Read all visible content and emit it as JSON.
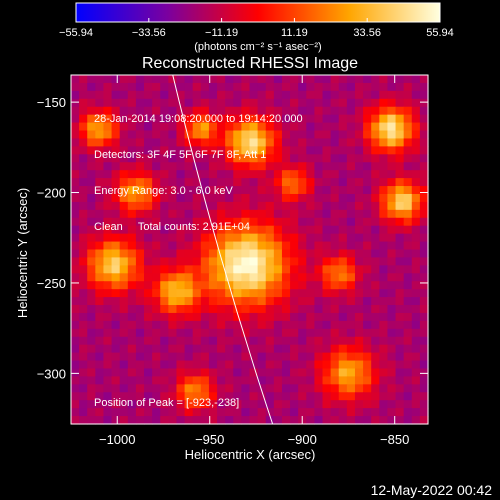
{
  "chart_data": {
    "type": "heatmap",
    "title": "Reconstructed RHESSI Image",
    "xlabel": "Heliocentric X (arcsec)",
    "ylabel": "Heliocentric Y (arcsec)",
    "xlim": [
      -1025,
      -832
    ],
    "ylim": [
      -328,
      -135
    ],
    "x_ticks": [
      -1000,
      -950,
      -900,
      -850
    ],
    "x_tick_labels": [
      "−1000",
      "−950",
      "−900",
      "−850"
    ],
    "y_ticks": [
      -150,
      -200,
      -250,
      -300
    ],
    "y_tick_labels": [
      "−150",
      "−200",
      "−250",
      "−300"
    ],
    "colorbar": {
      "min": -55.94,
      "max": 55.94,
      "ticks": [
        -55.94,
        -33.56,
        -11.19,
        11.19,
        33.56,
        55.94
      ],
      "tick_labels": [
        "−55.94",
        "−33.56",
        "−11.19",
        "11.19",
        "33.56",
        "55.94"
      ],
      "unit_label": "(photons cm⁻² s⁻¹ asec⁻²)",
      "colors": [
        "#0000ff",
        "#7a00a0",
        "#ff0000",
        "#ffa500",
        "#ffffe0"
      ]
    },
    "peak": {
      "x": -923,
      "y": -238
    },
    "sources": [
      {
        "x": -930,
        "y": -240,
        "radius": 22,
        "amp": 55.94
      },
      {
        "x": -928,
        "y": -172,
        "radius": 13,
        "amp": 46
      },
      {
        "x": -852,
        "y": -165,
        "radius": 12,
        "amp": 48
      },
      {
        "x": -846,
        "y": -205,
        "radius": 11,
        "amp": 42
      },
      {
        "x": -1002,
        "y": -240,
        "radius": 14,
        "amp": 40
      },
      {
        "x": -968,
        "y": -255,
        "radius": 12,
        "amp": 34
      },
      {
        "x": -990,
        "y": -200,
        "radius": 11,
        "amp": 28
      },
      {
        "x": -1010,
        "y": -165,
        "radius": 10,
        "amp": 30
      },
      {
        "x": -875,
        "y": -300,
        "radius": 14,
        "amp": 30
      },
      {
        "x": -958,
        "y": -310,
        "radius": 10,
        "amp": 24
      },
      {
        "x": -905,
        "y": -195,
        "radius": 9,
        "amp": 20
      },
      {
        "x": -880,
        "y": -245,
        "radius": 10,
        "amp": 22
      },
      {
        "x": -955,
        "y": -165,
        "radius": 9,
        "amp": 26
      }
    ],
    "limb_arc": {
      "x_top": -970,
      "x_bottom": -916
    },
    "annotations": [
      "28-Jan-2014 19:08:20.000 to 19:14:20.000",
      "Detectors: 3F 4F 5F 6F 7F 8F, Att 1",
      "Energy Range: 3.0 - 6.0 keV",
      "Clean     Total counts: 2.91E+04"
    ],
    "peak_label": "Position of Peak = [-923,-238]"
  },
  "footer": {
    "timestamp": "12-May-2022 00:42"
  }
}
